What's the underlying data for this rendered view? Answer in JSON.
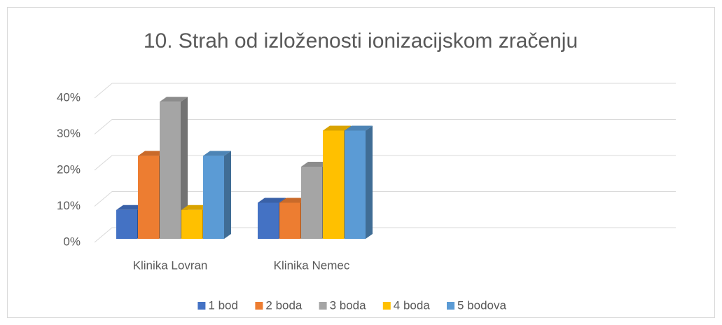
{
  "chart_data": {
    "type": "bar3d",
    "title": "10. Strah od izloženosti ionizacijskom zračenju",
    "categories": [
      "Klinika Lovran",
      "Klinika Nemec"
    ],
    "series": [
      {
        "name": "1 bod",
        "color": "#4472c4",
        "values": [
          8,
          10
        ]
      },
      {
        "name": "2 boda",
        "color": "#ed7d31",
        "values": [
          23,
          10
        ]
      },
      {
        "name": "3 boda",
        "color": "#a5a5a5",
        "values": [
          38,
          20
        ]
      },
      {
        "name": "4 boda",
        "color": "#ffc000",
        "values": [
          8,
          30
        ]
      },
      {
        "name": "5 bodova",
        "color": "#5b9bd5",
        "values": [
          23,
          30
        ]
      }
    ],
    "ylim": [
      0,
      40
    ],
    "yticks": [
      {
        "value": 0,
        "label": "0%"
      },
      {
        "value": 10,
        "label": "10%"
      },
      {
        "value": 20,
        "label": "20%"
      },
      {
        "value": 30,
        "label": "30%"
      },
      {
        "value": 40,
        "label": "40%"
      }
    ],
    "grid": true,
    "legend": "bottom"
  }
}
